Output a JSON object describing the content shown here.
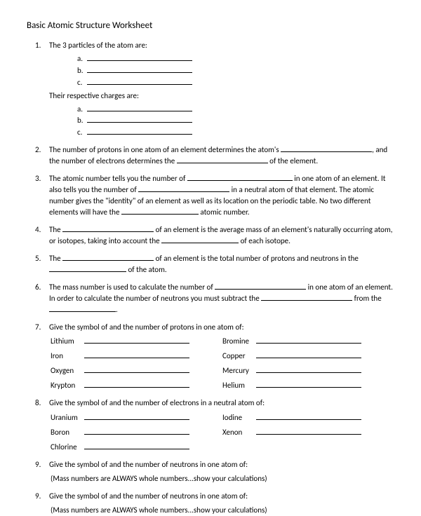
{
  "title": "Basic Atomic Structure Worksheet",
  "q1": {
    "num": "1.",
    "lead": "The 3 particles of the atom are:",
    "letters": [
      "a.",
      "b.",
      "c."
    ],
    "their": "Their respective charges are:"
  },
  "q2": {
    "num": "2.",
    "p1": "The number of protons in one atom of an element determines the atom's ",
    "p2": ", and the number of electrons determines the ",
    "p3": " of the element."
  },
  "q3": {
    "num": "3.",
    "p1": "The atomic number tells you the number of ",
    "p2": " in one atom of an element.  It also tells you the number of ",
    "p3": " in a neutral atom of that element.  The atomic number gives the \"identity\" of an element as well as its location on the periodic table.  No two different elements will have the ",
    "p4": " atomic number."
  },
  "q4": {
    "num": "4.",
    "p1": "The ",
    "p2": " of an element is the average mass of an element's naturally occurring atom, or isotopes, taking into account the ",
    "p3": " of each isotope."
  },
  "q5": {
    "num": "5.",
    "p1": "The ",
    "p2": " of an element is the total number of protons and neutrons in the ",
    "p3": " of the atom."
  },
  "q6": {
    "num": "6.",
    "p1": "The mass number is used to calculate the number of ",
    "p2": " in one atom of an element.  In order to calculate the number of neutrons you must subtract the ",
    "p3": " from the ",
    "p4": "."
  },
  "q7": {
    "num": "7.",
    "lead": "Give the symbol of and the number of protons in one atom of:",
    "rows": [
      [
        "Lithium",
        "Bromine"
      ],
      [
        "Iron",
        "Copper"
      ],
      [
        "Oxygen",
        "Mercury"
      ],
      [
        "Krypton",
        "Helium"
      ]
    ]
  },
  "q8": {
    "num": "8.",
    "lead": "Give the symbol of and the number of electrons in a neutral atom of:",
    "rows": [
      [
        "Uranium",
        "Iodine"
      ],
      [
        "Boron",
        "Xenon"
      ],
      [
        "Chlorine",
        ""
      ]
    ]
  },
  "q9a": {
    "num": "9.",
    "lead": "Give the symbol of and the number of neutrons in one atom of:",
    "note": "(Mass numbers are ALWAYS whole numbers...show your calculations)"
  },
  "q9b": {
    "num": "9.",
    "lead": "Give the symbol of and the number of neutrons in one atom of:",
    "note": "(Mass numbers are ALWAYS whole numbers...show your calculations)"
  }
}
